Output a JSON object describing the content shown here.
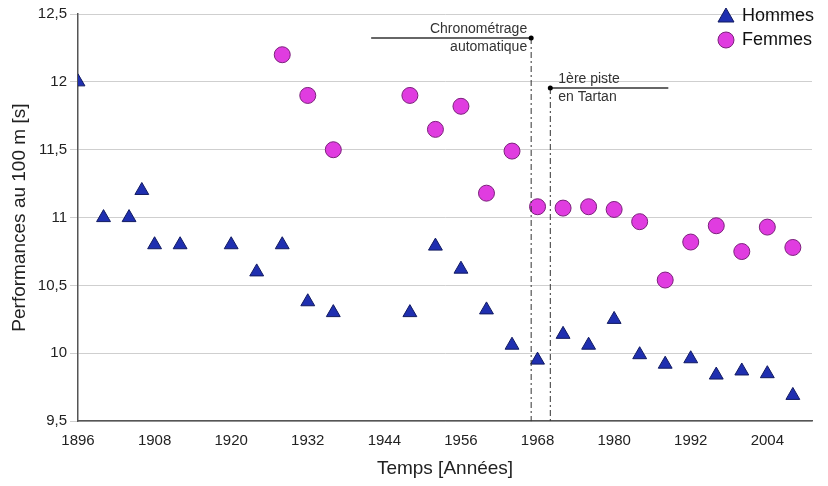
{
  "chart_data": {
    "type": "scatter",
    "x_label": "Temps [Années]",
    "y_label": "Performances au 100 m [s]",
    "xlim": [
      1896,
      2011
    ],
    "xticks": [
      1896,
      1908,
      1920,
      1932,
      1944,
      1956,
      1968,
      1980,
      1992,
      2004
    ],
    "ylim": [
      9.5,
      12.5
    ],
    "yticks": [
      {
        "value": 9.5,
        "label": "9,5"
      },
      10,
      {
        "value": 10.5,
        "label": "10,5"
      },
      11,
      {
        "value": 11.5,
        "label": "11,5"
      },
      12,
      {
        "value": 12.5,
        "label": "12,5"
      }
    ],
    "grid": true,
    "legend": "upper right",
    "series": [
      {
        "name": "Hommes",
        "color": "#1f2fb0",
        "marker": "triangle",
        "x": [
          1896,
          1900,
          1904,
          1906,
          1908,
          1912,
          1920,
          1924,
          1928,
          1932,
          1936,
          1948,
          1952,
          1956,
          1960,
          1964,
          1968,
          1972,
          1976,
          1980,
          1984,
          1988,
          1992,
          1996,
          2000,
          2004,
          2008
        ],
        "values": [
          12.0,
          11.0,
          11.0,
          11.2,
          10.8,
          10.8,
          10.8,
          10.6,
          10.8,
          10.38,
          10.3,
          10.3,
          10.79,
          10.62,
          10.32,
          10.06,
          9.95,
          10.14,
          10.06,
          10.25,
          9.99,
          9.92,
          9.96,
          9.84,
          9.87,
          9.85,
          9.69
        ]
      },
      {
        "name": "Femmes",
        "color": "#e03ce0",
        "marker": "circle",
        "x": [
          1928,
          1932,
          1936,
          1948,
          1952,
          1956,
          1960,
          1964,
          1968,
          1972,
          1976,
          1980,
          1984,
          1988,
          1992,
          1996,
          2000,
          2004,
          2008
        ],
        "values": [
          12.2,
          11.9,
          11.5,
          11.9,
          11.65,
          11.82,
          11.18,
          11.49,
          11.08,
          11.07,
          11.08,
          11.06,
          10.97,
          10.54,
          10.82,
          10.94,
          10.75,
          10.93,
          10.78
        ]
      }
    ],
    "annotations": [
      {
        "x": 1967,
        "text": [
          "Chronométrage",
          "automatique"
        ]
      },
      {
        "x": 1970,
        "text": [
          "1ère piste",
          "en Tartan"
        ]
      }
    ]
  }
}
